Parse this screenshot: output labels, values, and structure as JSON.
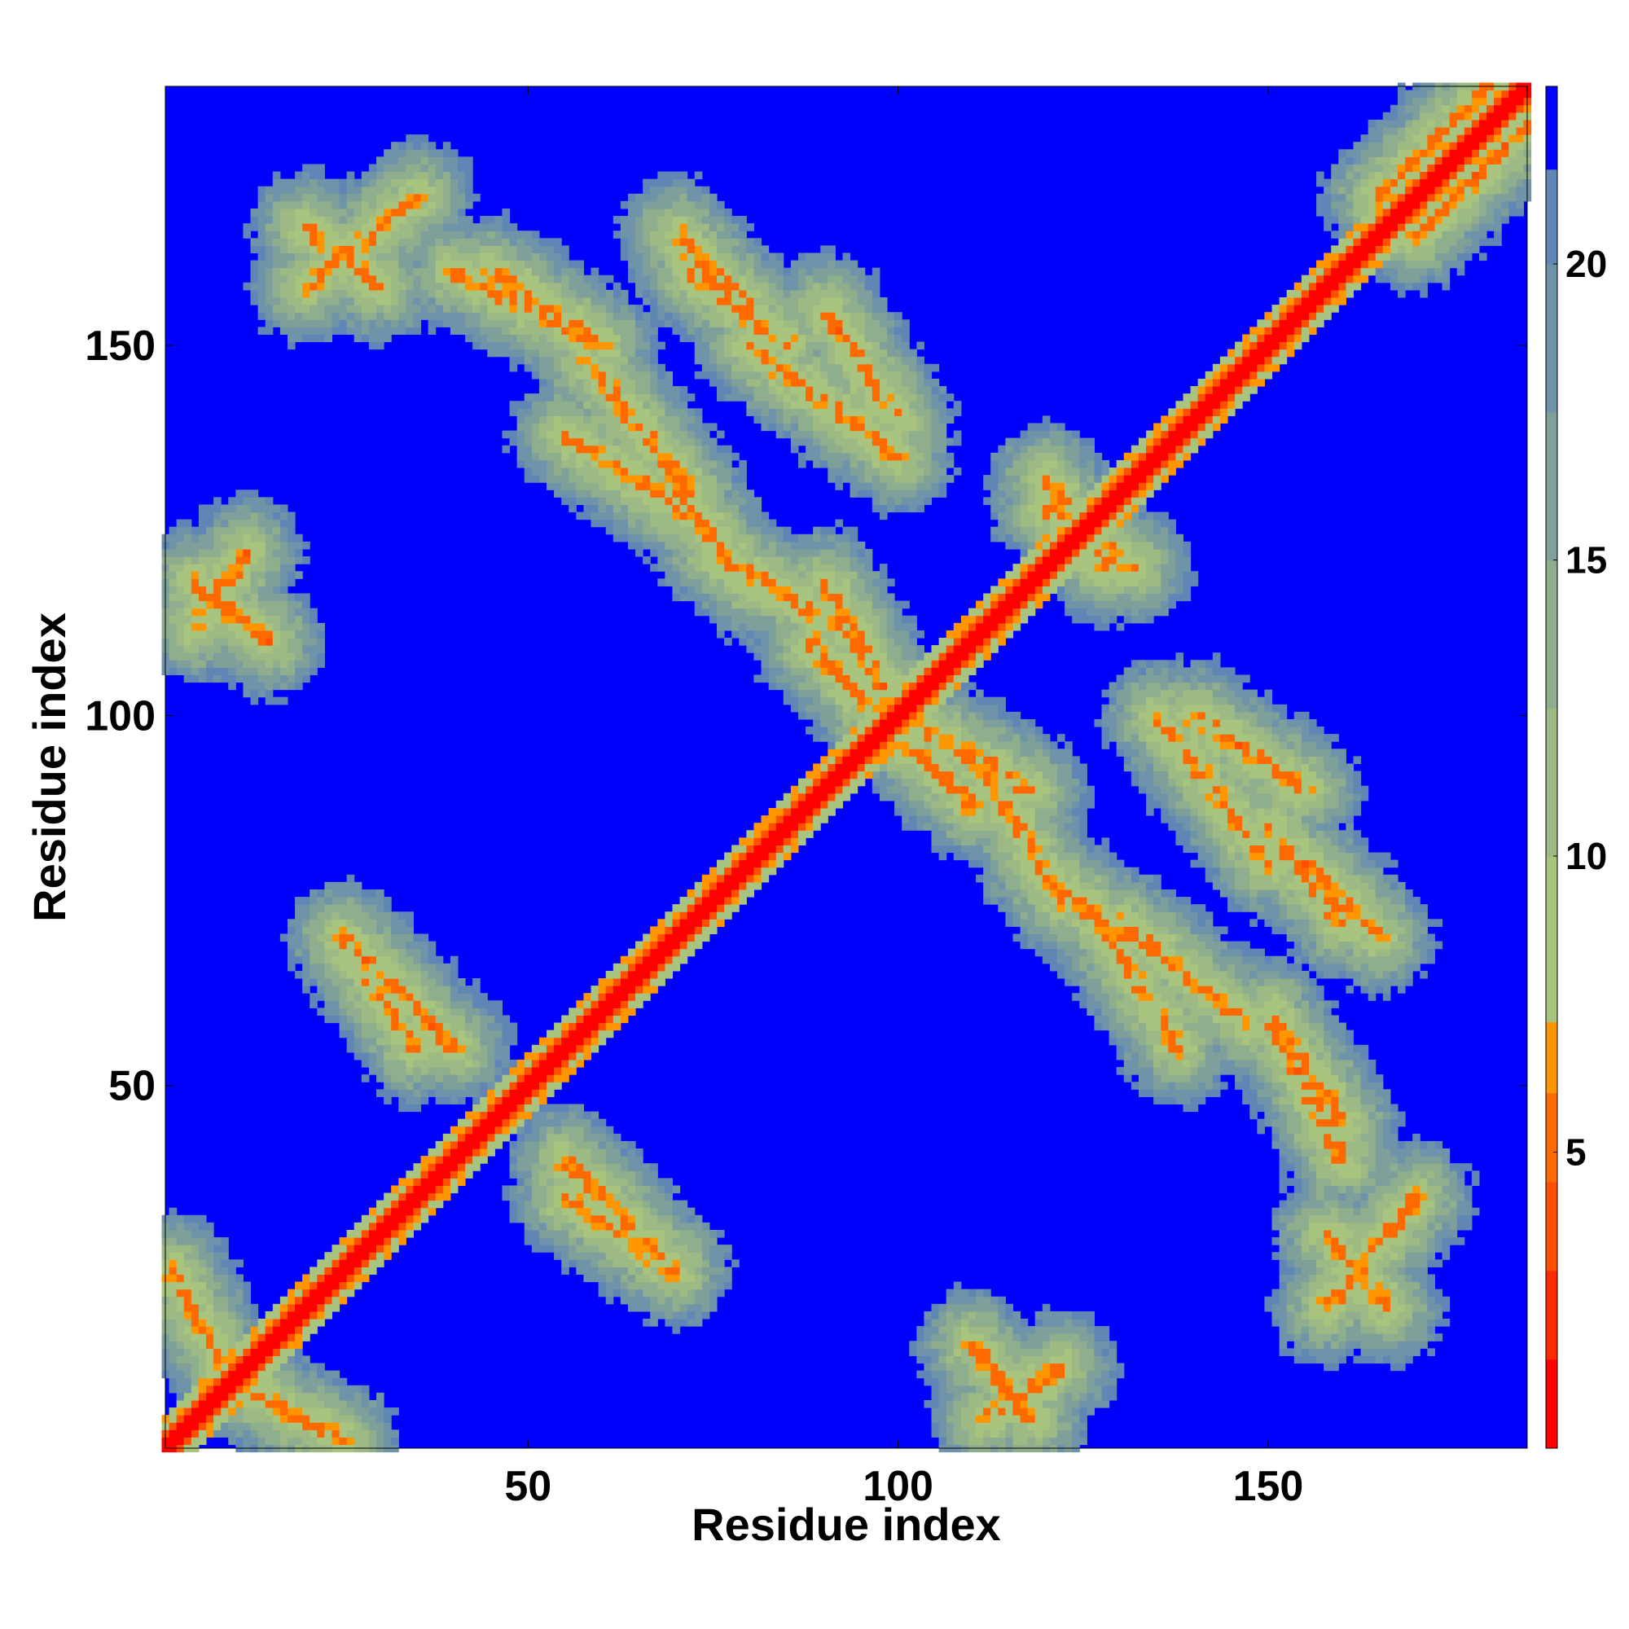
{
  "chart_data": {
    "type": "heatmap",
    "title": "",
    "xlabel": "Residue index",
    "ylabel": "Residue index",
    "n_residues": 185,
    "xlim": [
      1,
      185
    ],
    "ylim": [
      1,
      185
    ],
    "x_ticks": [
      50,
      100,
      150
    ],
    "y_ticks": [
      50,
      100,
      150
    ],
    "colorbar": {
      "range": [
        0,
        23
      ],
      "ticks": [
        5,
        10,
        15,
        20
      ],
      "levels": [
        {
          "min": 0,
          "max": 1.5,
          "color": "#ff0000"
        },
        {
          "min": 1.5,
          "max": 3,
          "color": "#ff2a00"
        },
        {
          "min": 3,
          "max": 4.5,
          "color": "#ff5000"
        },
        {
          "min": 4.5,
          "max": 6,
          "color": "#ff6a00"
        },
        {
          "min": 6,
          "max": 7.2,
          "color": "#ff9600"
        },
        {
          "min": 7.2,
          "max": 10,
          "color": "#a9c47f"
        },
        {
          "min": 10,
          "max": 12.5,
          "color": "#9dba84"
        },
        {
          "min": 12.5,
          "max": 15,
          "color": "#8fae8e"
        },
        {
          "min": 15,
          "max": 17.5,
          "color": "#7fa09a"
        },
        {
          "min": 17.5,
          "max": 20,
          "color": "#6f93a8"
        },
        {
          "min": 20,
          "max": 21.6,
          "color": "#5f86b4"
        },
        {
          "min": 21.6,
          "max": 23,
          "color": "#0000ff"
        }
      ]
    },
    "background_color": "#0000ff",
    "contact_bands": [
      {
        "from": [
          1,
          1
        ],
        "to": [
          185,
          185
        ],
        "kind": "diagonal"
      },
      {
        "from": [
          10,
          10
        ],
        "to": [
          25,
          2
        ],
        "kind": "anti"
      },
      {
        "from": [
          20,
          158
        ],
        "to": [
          35,
          170
        ],
        "kind": "band"
      },
      {
        "from": [
          40,
          160
        ],
        "to": [
          60,
          150
        ],
        "kind": "band"
      },
      {
        "from": [
          55,
          138
        ],
        "to": [
          75,
          125
        ],
        "kind": "band"
      },
      {
        "from": [
          72,
          160
        ],
        "to": [
          85,
          150
        ],
        "kind": "band"
      },
      {
        "from": [
          80,
          150
        ],
        "to": [
          100,
          135
        ],
        "kind": "band"
      },
      {
        "from": [
          75,
          122
        ],
        "to": [
          92,
          112
        ],
        "kind": "band"
      },
      {
        "from": [
          88,
          110
        ],
        "to": [
          102,
          95
        ],
        "kind": "band"
      },
      {
        "from": [
          104,
          98
        ],
        "to": [
          118,
          90
        ],
        "kind": "band"
      },
      {
        "from": [
          118,
          80
        ],
        "to": [
          130,
          70
        ],
        "kind": "band"
      },
      {
        "from": [
          130,
          72
        ],
        "to": [
          148,
          58
        ],
        "kind": "band"
      },
      {
        "from": [
          140,
          100
        ],
        "to": [
          155,
          90
        ],
        "kind": "band"
      },
      {
        "from": [
          155,
          80
        ],
        "to": [
          165,
          70
        ],
        "kind": "band"
      },
      {
        "from": [
          150,
          60
        ],
        "to": [
          160,
          45
        ],
        "kind": "band"
      },
      {
        "from": [
          158,
          30
        ],
        "to": [
          166,
          20
        ],
        "kind": "band"
      },
      {
        "from": [
          112,
          5
        ],
        "to": [
          122,
          12
        ],
        "kind": "band"
      },
      {
        "from": [
          55,
          35
        ],
        "to": [
          70,
          25
        ],
        "kind": "band"
      },
      {
        "from": [
          25,
          70
        ],
        "to": [
          40,
          55
        ],
        "kind": "band"
      },
      {
        "from": [
          5,
          118
        ],
        "to": [
          15,
          110
        ],
        "kind": "band"
      },
      {
        "from": [
          165,
          170
        ],
        "to": [
          180,
          185
        ],
        "kind": "band"
      },
      {
        "from": [
          120,
          128
        ],
        "to": [
          132,
          120
        ],
        "kind": "band"
      }
    ]
  }
}
